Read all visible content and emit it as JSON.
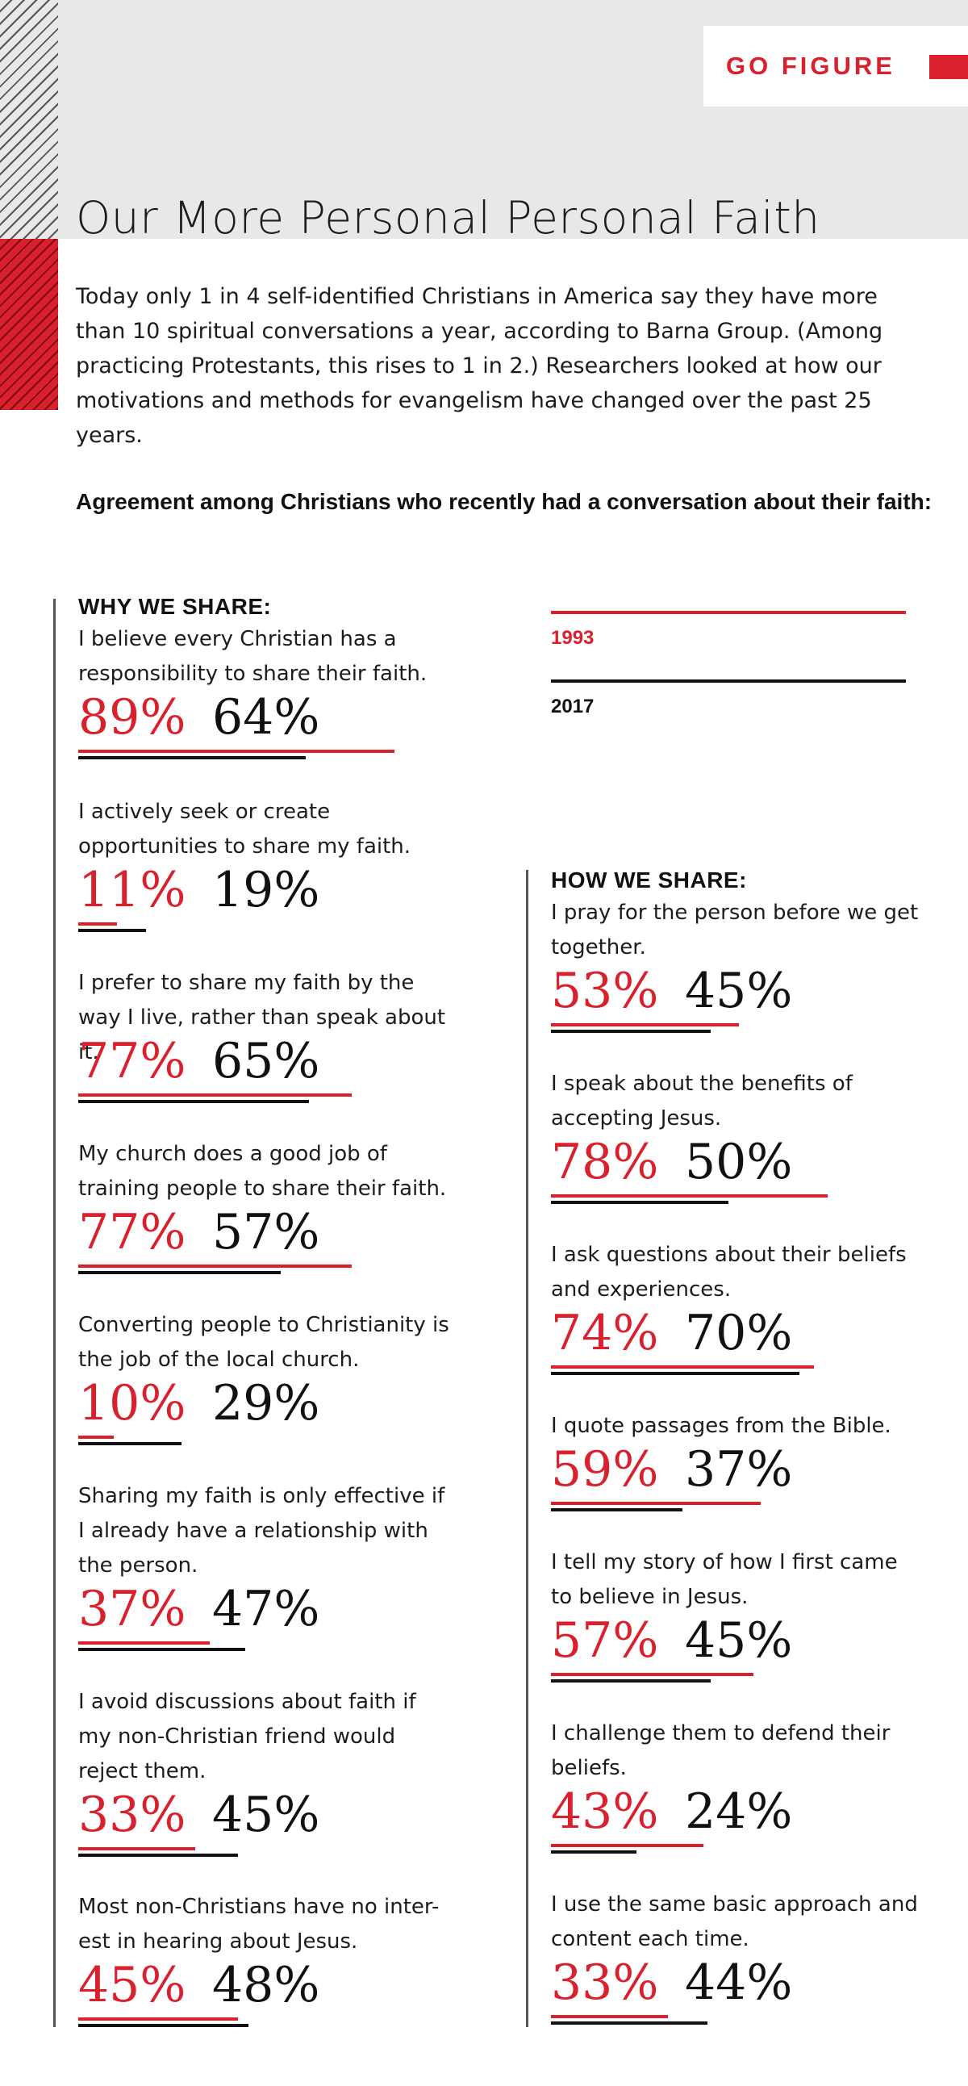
{
  "header": {
    "tag": "GO FIGURE",
    "title": "Our More Personal Personal Faith",
    "intro": "Today only 1 in 4 self-identified Christians in America say they have more than 10 spiritual conversations a year, according to Barna Group. (Among practicing Protestants, this rises to 1 in 2.) Researchers looked at how our motivations and methods for evangelism have changed over the past 25 years.",
    "subtitle": "Agreement among Christians who recently had a conversation about their faith:"
  },
  "colors": {
    "accent": "#d9202c",
    "ink": "#111111",
    "band": "#e8e8e8"
  },
  "chart_data": {
    "type": "bar",
    "unit": "%",
    "legend": [
      {
        "name": "1993",
        "color": "#d9202c"
      },
      {
        "name": "2017",
        "color": "#111111"
      }
    ],
    "sections": [
      {
        "heading": "WHY WE SHARE:",
        "items": [
          {
            "label": "I believe every Christian has a responsibility to share their faith.",
            "v1993": 89,
            "v2017": 64
          },
          {
            "label": "I actively seek or create opportunities to share my faith.",
            "v1993": 11,
            "v2017": 19
          },
          {
            "label": "I prefer to share my faith by the way I live, rather than speak about it.",
            "v1993": 77,
            "v2017": 65
          },
          {
            "label": "My church does a good job of training people to share their faith.",
            "v1993": 77,
            "v2017": 57
          },
          {
            "label": "Converting people to Christianity is the job of the local church.",
            "v1993": 10,
            "v2017": 29
          },
          {
            "label": "Sharing my faith is only effective if I already have a relationship with the person.",
            "v1993": 37,
            "v2017": 47
          },
          {
            "label": "I avoid discussions about faith if my non-Christian friend would reject them.",
            "v1993": 33,
            "v2017": 45
          },
          {
            "label": "Most non-Christians have no inter-est in hearing about Jesus.",
            "v1993": 45,
            "v2017": 48
          }
        ]
      },
      {
        "heading": "HOW WE SHARE:",
        "items": [
          {
            "label": "I pray for the person before we get together.",
            "v1993": 53,
            "v2017": 45
          },
          {
            "label": "I speak about the benefits of accepting Jesus.",
            "v1993": 78,
            "v2017": 50
          },
          {
            "label": "I ask questions about their beliefs and experiences.",
            "v1993": 74,
            "v2017": 70
          },
          {
            "label": "I quote passages from the Bible.",
            "v1993": 59,
            "v2017": 37
          },
          {
            "label": "I tell my story of how I first came to believe in Jesus.",
            "v1993": 57,
            "v2017": 45
          },
          {
            "label": "I challenge them to defend their beliefs.",
            "v1993": 43,
            "v2017": 24
          },
          {
            "label": "I use the same basic approach and content each time.",
            "v1993": 33,
            "v2017": 44
          }
        ]
      }
    ]
  }
}
